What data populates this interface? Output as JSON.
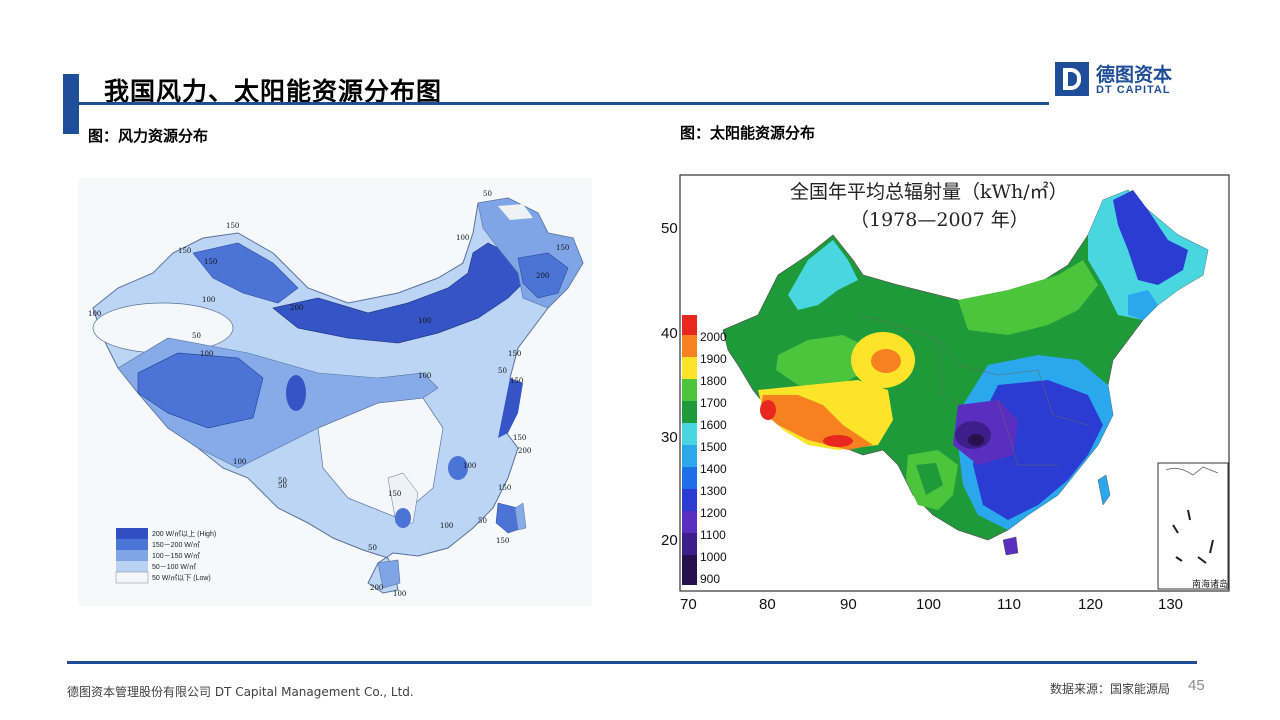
{
  "header": {
    "title": "我国风力、太阳能资源分布图",
    "logo_cn": "德图资本",
    "logo_en": "DT CAPITAL"
  },
  "left_figure": {
    "caption": "图：风力资源分布",
    "legend": [
      {
        "label": "200 W/㎡以上 (High)",
        "color": "#2f4fc2"
      },
      {
        "label": "150－200 W/㎡",
        "color": "#4c73d6"
      },
      {
        "label": "100－150 W/㎡",
        "color": "#7fa5e6"
      },
      {
        "label": "50－100 W/㎡",
        "color": "#b8d2f3"
      },
      {
        "label": "50 W/㎡以下 (Low)",
        "color": "#f3f6fa"
      }
    ],
    "contour_labels": [
      "50",
      "150",
      "100",
      "150",
      "150",
      "100",
      "150",
      "200",
      "100",
      "200",
      "100",
      "50",
      "100",
      "150",
      "50",
      "50",
      "100",
      "150",
      "100",
      "150",
      "200",
      "150",
      "100",
      "50",
      "150",
      "50",
      "50",
      "150",
      "200",
      "100",
      "100"
    ]
  },
  "right_figure": {
    "caption": "图：太阳能资源分布",
    "map_title_line1": "全国年平均总辐射量（kWh/㎡）",
    "map_title_line2": "（1978—2007 年）",
    "x_ticks": [
      "70",
      "80",
      "90",
      "100",
      "110",
      "120",
      "130"
    ],
    "y_ticks": [
      "50",
      "40",
      "30",
      "20"
    ],
    "legend": [
      {
        "label": "2000",
        "color": "#e8281e"
      },
      {
        "label": "1900",
        "color": "#f5821f"
      },
      {
        "label": "1800",
        "color": "#fde428"
      },
      {
        "label": "1700",
        "color": "#4cc43b"
      },
      {
        "label": "1600",
        "color": "#1f9a3a"
      },
      {
        "label": "1500",
        "color": "#48d7e0"
      },
      {
        "label": "1400",
        "color": "#2aa8ee"
      },
      {
        "label": "1300",
        "color": "#1c6fe6"
      },
      {
        "label": "1200",
        "color": "#2b3cd2"
      },
      {
        "label": "1100",
        "color": "#5a2fc0"
      },
      {
        "label": "1000",
        "color": "#3d1f8a"
      },
      {
        "label": "900",
        "color": "#26104e"
      }
    ],
    "inset_label": "南海诸岛"
  },
  "footer": {
    "company": "德图资本管理股份有限公司 DT Capital Management Co., Ltd.",
    "source": "数据来源：国家能源局",
    "page_number": "45"
  }
}
